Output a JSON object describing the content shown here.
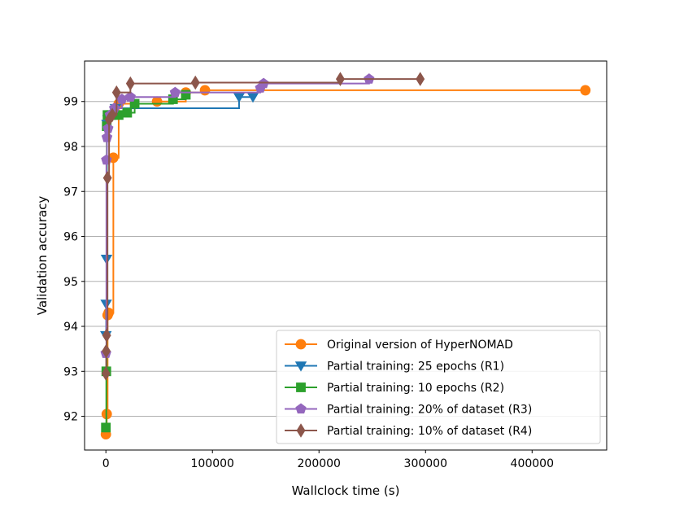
{
  "chart_data": {
    "type": "line",
    "step": "post",
    "title": "",
    "xlabel": "Wallclock time (s)",
    "ylabel": "Validation accuracy",
    "xlim": [
      -20000,
      470000
    ],
    "ylim": [
      91.25,
      99.9
    ],
    "xticks": [
      0,
      100000,
      200000,
      300000,
      400000
    ],
    "xtick_labels": [
      "0",
      "100000",
      "200000",
      "300000",
      "400000"
    ],
    "yticks": [
      92,
      93,
      94,
      95,
      96,
      97,
      98,
      99
    ],
    "ytick_labels": [
      "92",
      "93",
      "94",
      "95",
      "96",
      "97",
      "98",
      "99"
    ],
    "grid": "horizontal",
    "legend_position": "lower-right",
    "series": [
      {
        "name": "Original version of HyperNOMAD",
        "color": "#ff7f0e",
        "marker": "circle",
        "x": [
          0,
          800,
          1600,
          2500,
          7000,
          12000,
          48000,
          75000,
          93000,
          450000
        ],
        "y": [
          91.6,
          92.05,
          94.25,
          94.3,
          97.75,
          98.95,
          99.0,
          99.2,
          99.25,
          99.25
        ]
      },
      {
        "name": "Partial training: 25 epochs (R1)",
        "color": "#1f77b4",
        "marker": "triangle-down",
        "x": [
          0,
          300,
          600,
          1000,
          2000,
          5000,
          9000,
          125000,
          138000
        ],
        "y": [
          93.8,
          94.5,
          95.5,
          98.5,
          98.6,
          98.7,
          98.85,
          99.1,
          99.1
        ],
        "end_x": 140000
      },
      {
        "name": "Partial training: 10 epochs (R2)",
        "color": "#2ca02c",
        "marker": "square",
        "x": [
          0,
          400,
          800,
          1500,
          5000,
          12000,
          20000,
          27000,
          63000,
          75000
        ],
        "y": [
          91.75,
          93.0,
          98.45,
          98.7,
          98.7,
          98.7,
          98.75,
          98.95,
          99.05,
          99.15
        ]
      },
      {
        "name": "Partial training: 20% of dataset (R3)",
        "color": "#9467bd",
        "marker": "pentagon",
        "x": [
          0,
          500,
          1000,
          2000,
          4000,
          8000,
          15000,
          23000,
          65000,
          145000,
          148000,
          247000
        ],
        "y": [
          93.4,
          97.7,
          98.2,
          98.4,
          98.7,
          98.85,
          99.05,
          99.1,
          99.2,
          99.3,
          99.4,
          99.5
        ]
      },
      {
        "name": "Partial training: 10% of dataset (R4)",
        "color": "#8c564b",
        "marker": "diamond",
        "x": [
          0,
          300,
          700,
          1500,
          3000,
          6000,
          10000,
          23000,
          84000,
          220000,
          295000
        ],
        "y": [
          92.95,
          93.45,
          93.8,
          97.3,
          98.6,
          98.7,
          99.2,
          99.4,
          99.42,
          99.5,
          99.5
        ]
      }
    ]
  }
}
